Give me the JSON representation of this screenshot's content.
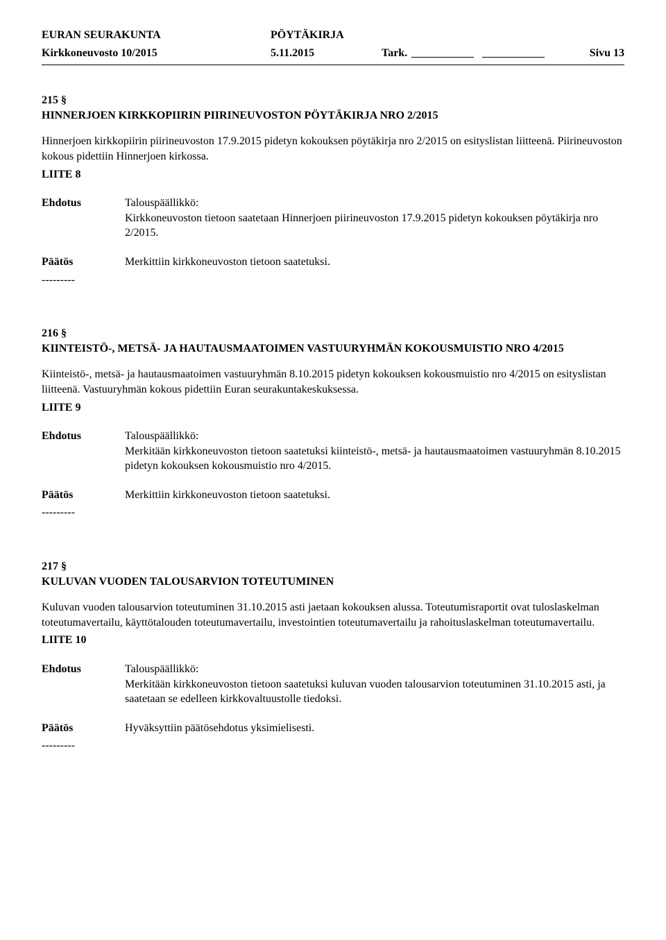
{
  "header": {
    "org": "EURAN SEURAKUNTA",
    "doc_type": "PÖYTÄKIRJA",
    "committee": "Kirkkoneuvosto 10/2015",
    "date": "5.11.2015",
    "tark_label": "Tark.",
    "page_label": "Sivu 13"
  },
  "sections": [
    {
      "num": "215 §",
      "title": "HINNERJOEN KIRKKOPIIRIN PIIRINEUVOSTON PÖYTÄKIRJA NRO 2/2015",
      "body": "Hinnerjoen kirkkopiirin piirineuvoston 17.9.2015 pidetyn kokouksen pöytäkirja nro 2/2015 on esityslistan liitteenä. Piirineuvoston kokous pidettiin Hinnerjoen kirkossa.",
      "liite": "LIITE 8",
      "ehdotus_label": "Ehdotus",
      "ehdotus_role": "Talouspäällikkö:",
      "ehdotus_text": "Kirkkoneuvoston tietoon saatetaan Hinnerjoen piirineuvoston 17.9.2015 pidetyn kokouksen pöytäkirja nro 2/2015.",
      "paatos_label": "Päätös",
      "paatos_text": "Merkittiin kirkkoneuvoston tietoon saatetuksi.",
      "dash": "---------"
    },
    {
      "num": "216 §",
      "title": "KIINTEISTÖ-, METSÄ- JA HAUTAUSMAATOIMEN VASTUURYHMÄN KOKOUSMUISTIO NRO 4/2015",
      "body": "Kiinteistö-, metsä- ja hautausmaatoimen vastuuryhmän 8.10.2015 pidetyn kokouksen kokousmuistio nro 4/2015 on esityslistan liitteenä. Vastuuryhmän kokous pidettiin Euran seurakuntakeskuksessa.",
      "liite": "LIITE 9",
      "ehdotus_label": "Ehdotus",
      "ehdotus_role": "Talouspäällikkö:",
      "ehdotus_text": "Merkitään kirkkoneuvoston tietoon saatetuksi kiinteistö-, metsä- ja hautausmaatoimen vastuuryhmän 8.10.2015 pidetyn kokouksen kokousmuistio nro 4/2015.",
      "paatos_label": "Päätös",
      "paatos_text": "Merkittiin kirkkoneuvoston tietoon saatetuksi.",
      "dash": "---------"
    },
    {
      "num": "217 §",
      "title": "KULUVAN VUODEN TALOUSARVION TOTEUTUMINEN",
      "body": "Kuluvan vuoden talousarvion toteutuminen 31.10.2015 asti jaetaan kokouksen alussa. Toteutumisraportit ovat tuloslaskelman toteutumavertailu, käyttötalouden toteutumavertailu, investointien toteutumavertailu ja rahoituslaskelman toteutumavertailu.",
      "liite": "LIITE 10",
      "ehdotus_label": "Ehdotus",
      "ehdotus_role": "Talouspäällikkö:",
      "ehdotus_text": "Merkitään kirkkoneuvoston tietoon saatetuksi kuluvan vuoden talousarvion toteutuminen 31.10.2015 asti, ja saatetaan se edelleen kirkkovaltuustolle tiedoksi.",
      "paatos_label": "Päätös",
      "paatos_text": "Hyväksyttiin päätösehdotus yksimielisesti.",
      "dash": "---------"
    }
  ]
}
